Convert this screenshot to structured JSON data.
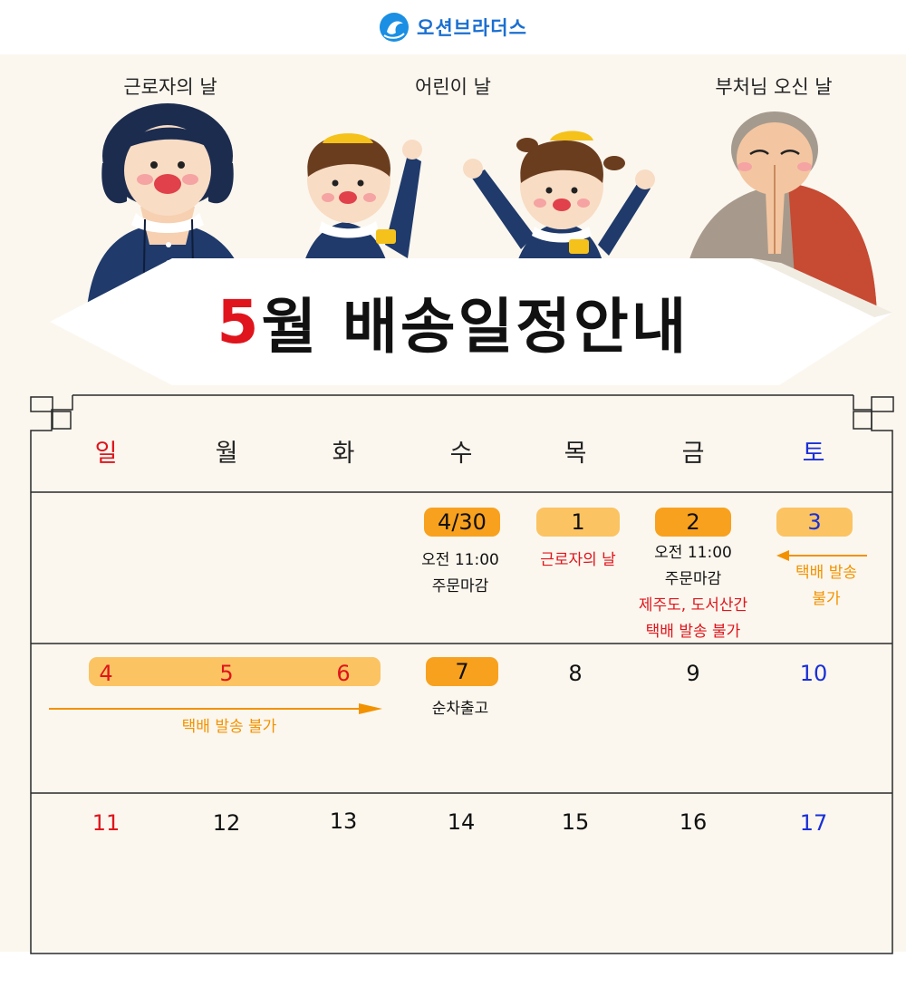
{
  "brand": {
    "name": "오션브라더스"
  },
  "holidays": {
    "labor_day": "근로자의 날",
    "children_day": "어린이 날",
    "buddha_day": "부처님 오신 날"
  },
  "title": {
    "month": "5",
    "rest": "월 배송일정안내"
  },
  "weekdays": {
    "sun": "일",
    "mon": "월",
    "tue": "화",
    "wed": "수",
    "thu": "목",
    "fri": "금",
    "sat": "토"
  },
  "week1": {
    "d430": "4/30",
    "d430_note1": "오전 11:00",
    "d430_note2": "주문마감",
    "d1": "1",
    "d1_note": "근로자의 날",
    "d2": "2",
    "d2_note1": "오전 11:00",
    "d2_note2": "주문마감",
    "d2_note3": "제주도, 도서산간",
    "d2_note4": "택배 발송 불가",
    "d3": "3",
    "d3_note1": "택배 발송",
    "d3_note2": "불가"
  },
  "week2": {
    "d4": "4",
    "d5": "5",
    "d6": "6",
    "range_note": "택배 발송 불가",
    "d7": "7",
    "d7_note": "순차출고",
    "d8": "8",
    "d9": "9",
    "d10": "10"
  },
  "week3": {
    "d11": "11",
    "d12": "12",
    "d13": "13",
    "d14": "14",
    "d15": "15",
    "d16": "16",
    "d17": "17"
  },
  "colors": {
    "background": "#fbf7ee",
    "accent_red": "#e0141c",
    "saturday_blue": "#1a2fd8",
    "pill_dark": "#f8a11e",
    "pill_light": "#fbc362",
    "note_orange": "#f39200",
    "brand_blue": "#1a6fd1",
    "navy": "#1f3a6b"
  },
  "icons": [
    "wave-logo-icon",
    "arrow-left-icon",
    "arrow-right-icon"
  ]
}
